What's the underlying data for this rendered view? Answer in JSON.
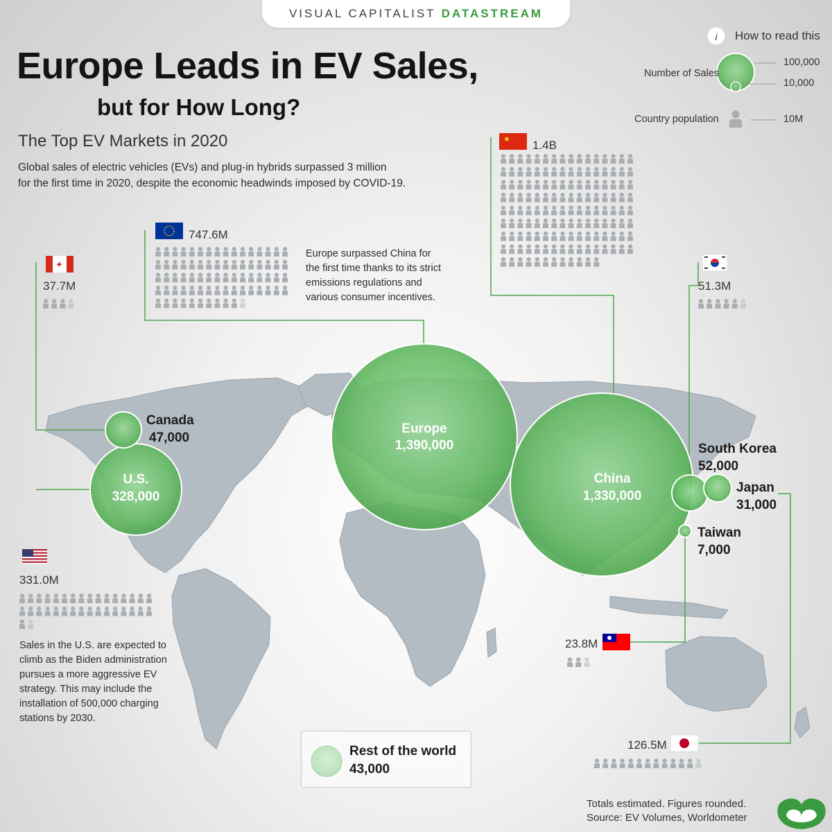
{
  "brand": {
    "name": "VISUAL CAPITALIST",
    "product": "DATASTREAM"
  },
  "title_line1": "Europe Leads in EV Sales,",
  "title_line2": "but for How Long?",
  "subtitle": "The Top EV Markets in 2020",
  "intro_line1": "Global sales of electric vehicles (EVs) and plug-in hybrids surpassed 3 million",
  "intro_line2": "for the first time in 2020, despite the economic headwinds imposed by COVID-19.",
  "legend": {
    "title": "How to read this",
    "info_icon": "i",
    "sales_label": "Number of Sales",
    "sales_large": "100,000",
    "sales_small": "10,000",
    "population_label": "Country population",
    "population_unit": "10M"
  },
  "notes": {
    "europe": [
      "Europe surpassed China for",
      "the first time thanks to its strict",
      "emissions regulations and",
      "various consumer incentives."
    ],
    "us": [
      "Sales in the U.S. are expected to",
      "climb as the Biden administration",
      "pursues a more aggressive EV",
      "strategy. This may include the",
      "installation of 500,000 charging",
      "stations by 2030."
    ]
  },
  "rest_of_world": {
    "label": "Rest of the world",
    "value": "43,000"
  },
  "footer": {
    "line1": "Totals estimated. Figures rounded.",
    "line2": "Source: EV Volumes, Worldometer"
  },
  "colors": {
    "bubble": "#6cc46c",
    "bubble_edge": "#4ea54e",
    "brand_green": "#3a9a3f",
    "person": "#a9aeb3",
    "map": "#b4bcc3"
  },
  "icons": {
    "person": "person-icon",
    "logo": "visual-capitalist-logo",
    "info": "info-icon"
  },
  "chart_data": {
    "type": "bubble-map",
    "title": "Europe Leads in EV Sales, but for How Long?",
    "subtitle": "The Top EV Markets in 2020",
    "size_legend": [
      "100,000",
      "10,000"
    ],
    "population_legend": "10M",
    "series": [
      {
        "name": "Europe",
        "sales": 1390000,
        "sales_label": "1,390,000",
        "population_label": "747.6M",
        "population_m": 747.6,
        "flag": "eu"
      },
      {
        "name": "China",
        "sales": 1330000,
        "sales_label": "1,330,000",
        "population_label": "1.4B",
        "population_m": 1400,
        "flag": "china"
      },
      {
        "name": "U.S.",
        "sales": 328000,
        "sales_label": "328,000",
        "population_label": "331.0M",
        "population_m": 331.0,
        "flag": "usa"
      },
      {
        "name": "South Korea",
        "sales": 52000,
        "sales_label": "52,000",
        "population_label": "51.3M",
        "population_m": 51.3,
        "flag": "korea"
      },
      {
        "name": "Canada",
        "sales": 47000,
        "sales_label": "47,000",
        "population_label": "37.7M",
        "population_m": 37.7,
        "flag": "canada"
      },
      {
        "name": "Japan",
        "sales": 31000,
        "sales_label": "31,000",
        "population_label": "126.5M",
        "population_m": 126.5,
        "flag": "japan"
      },
      {
        "name": "Taiwan",
        "sales": 7000,
        "sales_label": "7,000",
        "population_label": "23.8M",
        "population_m": 23.8,
        "flag": "taiwan"
      },
      {
        "name": "Rest of the world",
        "sales": 43000,
        "sales_label": "43,000"
      }
    ]
  }
}
